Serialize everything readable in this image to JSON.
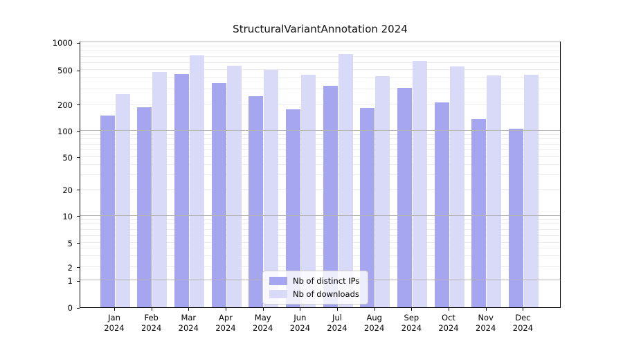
{
  "title": "StructuralVariantAnnotation 2024",
  "chart_data": {
    "type": "bar",
    "title": "StructuralVariantAnnotation 2024",
    "categories": [
      "Jan",
      "Feb",
      "Mar",
      "Apr",
      "May",
      "Jun",
      "Jul",
      "Aug",
      "Sep",
      "Oct",
      "Nov",
      "Dec"
    ],
    "category_year": "2024",
    "series": [
      {
        "name": "Nb of distinct IPs",
        "color": "#a5a5f0",
        "values": [
          150,
          185,
          450,
          355,
          250,
          175,
          330,
          183,
          310,
          212,
          137,
          106
        ]
      },
      {
        "name": "Nb of downloads",
        "color": "#d9d9f8",
        "values": [
          265,
          480,
          730,
          560,
          500,
          440,
          750,
          430,
          630,
          550,
          435,
          440
        ]
      }
    ],
    "yaxis": {
      "scale": "symlog",
      "tick_labels": [
        "0",
        "1",
        "2",
        "5",
        "10",
        "20",
        "50",
        "100",
        "200",
        "500",
        "1000"
      ],
      "tick_values": [
        0,
        1,
        2,
        5,
        10,
        20,
        50,
        100,
        200,
        500,
        1000
      ],
      "ylim": [
        0,
        1050
      ]
    },
    "grid": {
      "major_values": [
        1,
        10,
        100,
        1000
      ],
      "minor_multipliers": [
        2,
        3,
        4,
        5,
        6,
        7,
        8,
        9
      ],
      "major_color": "#b4b4b4",
      "minor_color": "#ebebeb",
      "grid_on": true
    },
    "legend": {
      "position": "lower-center",
      "entries": [
        {
          "label": "Nb of distinct IPs",
          "color": "#a5a5f0"
        },
        {
          "label": "Nb of downloads",
          "color": "#d9d9f8"
        }
      ]
    }
  }
}
